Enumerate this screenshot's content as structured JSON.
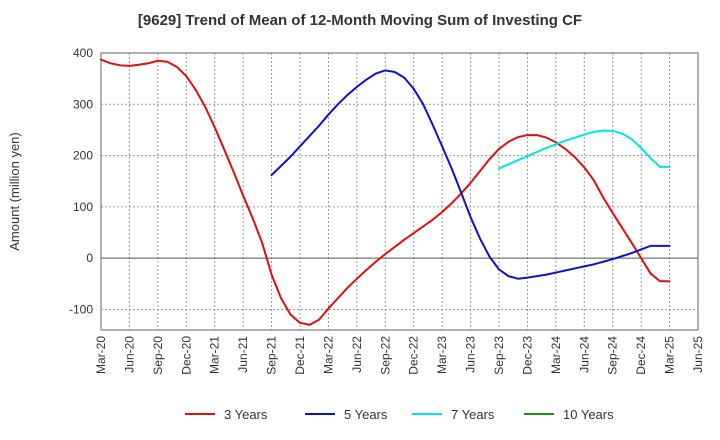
{
  "chart_data": {
    "type": "line",
    "title": "[9629]  Trend of Mean of 12-Month Moving Sum of Investing CF",
    "xlabel": "",
    "ylabel": "Amount (million yen)",
    "ylim": [
      -140,
      400
    ],
    "yticks": [
      -100,
      0,
      100,
      200,
      300,
      400
    ],
    "x_ticks": [
      "Mar-20",
      "Jun-20",
      "Sep-20",
      "Dec-20",
      "Mar-21",
      "Jun-21",
      "Sep-21",
      "Dec-21",
      "Mar-22",
      "Jun-22",
      "Sep-22",
      "Dec-22",
      "Mar-23",
      "Jun-23",
      "Sep-23",
      "Dec-23",
      "Mar-24",
      "Jun-24",
      "Sep-24",
      "Dec-24",
      "Mar-25",
      "Jun-25"
    ],
    "grid": true,
    "legend_position": "bottom",
    "series": [
      {
        "name": "3 Years",
        "color": "#dd1111",
        "x": [
          "Mar-20",
          "Apr-20",
          "May-20",
          "Jun-20",
          "Jul-20",
          "Aug-20",
          "Sep-20",
          "Oct-20",
          "Nov-20",
          "Dec-20",
          "Jan-21",
          "Feb-21",
          "Mar-21",
          "Apr-21",
          "May-21",
          "Jun-21",
          "Jul-21",
          "Aug-21",
          "Sep-21",
          "Oct-21",
          "Nov-21",
          "Dec-21",
          "Jan-22",
          "Feb-22",
          "Mar-22",
          "Apr-22",
          "May-22",
          "Jun-22",
          "Jul-22",
          "Aug-22",
          "Sep-22",
          "Oct-22",
          "Nov-22",
          "Dec-22",
          "Jan-23",
          "Feb-23",
          "Mar-23",
          "Apr-23",
          "May-23",
          "Jun-23",
          "Jul-23",
          "Aug-23",
          "Sep-23",
          "Oct-23",
          "Nov-23",
          "Dec-23",
          "Jan-24",
          "Feb-24",
          "Mar-24",
          "Apr-24",
          "May-24",
          "Jun-24",
          "Jul-24",
          "Aug-24",
          "Sep-24",
          "Oct-24",
          "Nov-24",
          "Dec-24",
          "Jan-25",
          "Feb-25",
          "Mar-25"
        ],
        "values": [
          387,
          380,
          376,
          375,
          377,
          380,
          385,
          383,
          373,
          355,
          328,
          295,
          255,
          212,
          168,
          122,
          78,
          30,
          -32,
          -78,
          -110,
          -126,
          -130,
          -120,
          -98,
          -78,
          -58,
          -40,
          -23,
          -7,
          8,
          22,
          36,
          49,
          62,
          75,
          90,
          107,
          126,
          147,
          170,
          193,
          213,
          227,
          236,
          240,
          240,
          235,
          226,
          213,
          197,
          177,
          152,
          118,
          88,
          59,
          30,
          0,
          -30,
          -45,
          -45
        ],
        "x_start_index": 0
      },
      {
        "name": "5 Years",
        "color": "#1111cc",
        "x": [
          "Sep-21",
          "Oct-21",
          "Nov-21",
          "Dec-21",
          "Jan-22",
          "Feb-22",
          "Mar-22",
          "Apr-22",
          "May-22",
          "Jun-22",
          "Jul-22",
          "Aug-22",
          "Sep-22",
          "Oct-22",
          "Nov-22",
          "Dec-22",
          "Jan-23",
          "Feb-23",
          "Mar-23",
          "Apr-23",
          "May-23",
          "Jun-23",
          "Jul-23",
          "Aug-23",
          "Sep-23",
          "Oct-23",
          "Nov-23",
          "Dec-23",
          "Jan-24",
          "Feb-24",
          "Mar-24",
          "Apr-24",
          "May-24",
          "Jun-24",
          "Jul-24",
          "Aug-24",
          "Sep-24",
          "Oct-24",
          "Nov-24",
          "Dec-24",
          "Jan-25",
          "Feb-25",
          "Mar-25"
        ],
        "values": [
          162,
          180,
          198,
          218,
          238,
          258,
          280,
          300,
          318,
          334,
          348,
          360,
          366,
          363,
          352,
          330,
          300,
          260,
          218,
          175,
          128,
          80,
          38,
          3,
          -22,
          -35,
          -40,
          -38,
          -35,
          -32,
          -28,
          -24,
          -20,
          -16,
          -12,
          -7,
          -2,
          4,
          10,
          17,
          24,
          24,
          24
        ]
      },
      {
        "name": "7 Years",
        "color": "#00e5e5",
        "x": [
          "Sep-23",
          "Oct-23",
          "Nov-23",
          "Dec-23",
          "Jan-24",
          "Feb-24",
          "Mar-24",
          "Apr-24",
          "May-24",
          "Jun-24",
          "Jul-24",
          "Aug-24",
          "Sep-24",
          "Oct-24",
          "Nov-24",
          "Dec-24",
          "Jan-25",
          "Feb-25",
          "Mar-25"
        ],
        "values": [
          175,
          183,
          191,
          199,
          207,
          215,
          222,
          229,
          235,
          241,
          246,
          249,
          248,
          243,
          232,
          215,
          195,
          178,
          178
        ]
      },
      {
        "name": "10 Years",
        "color": "#228822",
        "x": [],
        "values": []
      }
    ]
  }
}
